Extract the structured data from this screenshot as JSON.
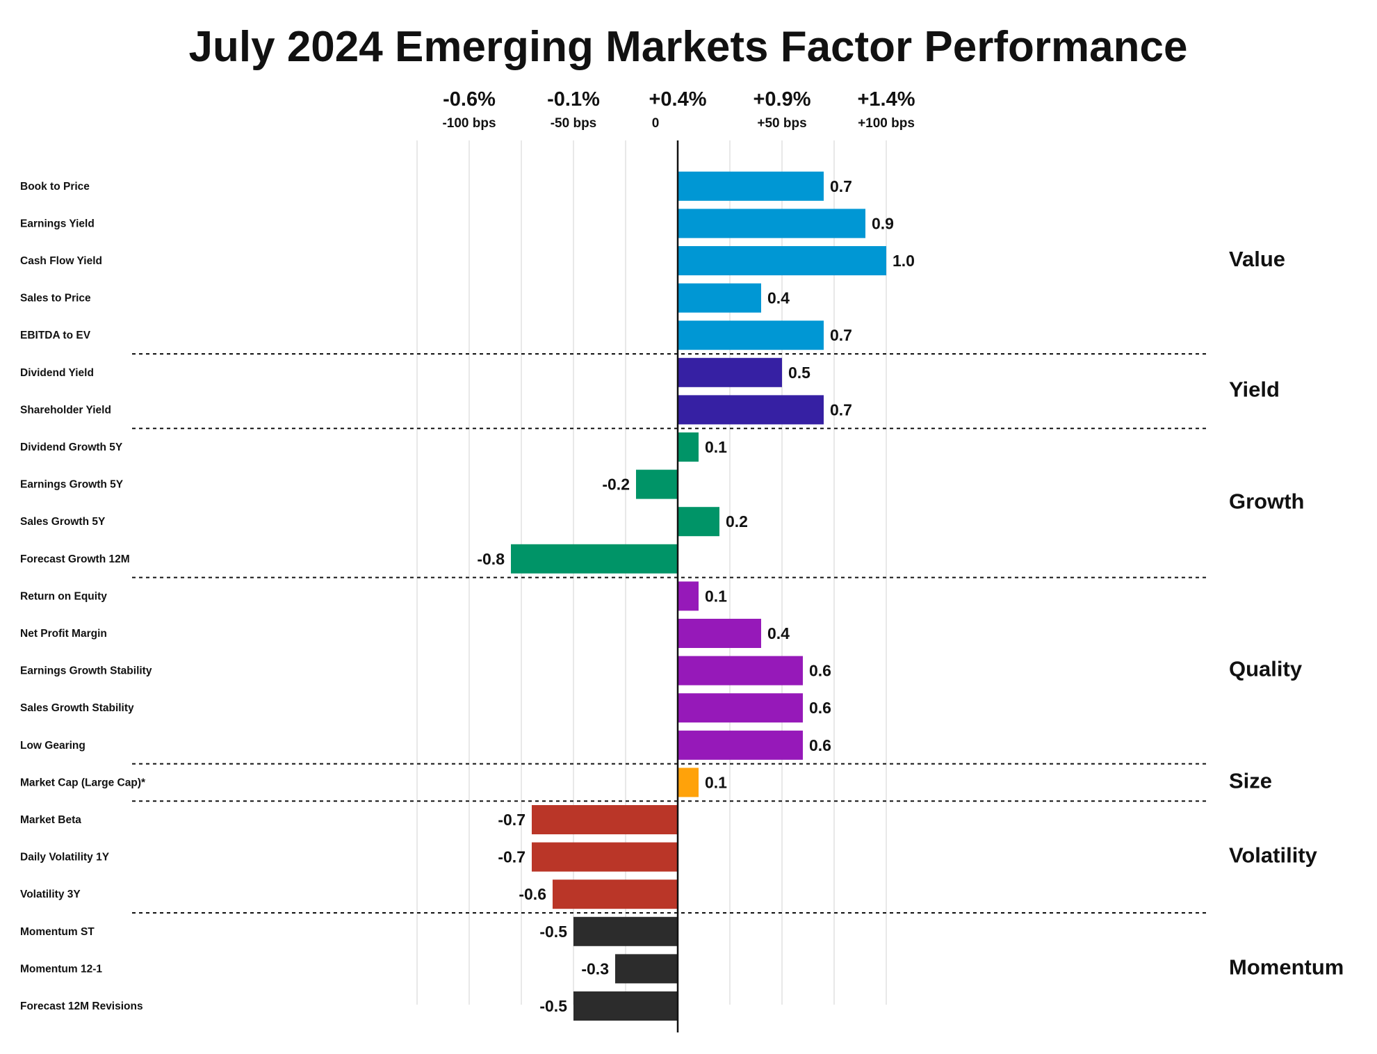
{
  "chart_data": {
    "type": "bar",
    "orientation": "horizontal",
    "title": "July 2024 Emerging Markets Factor Performance",
    "top_axis": {
      "ticks": [
        {
          "value": -100,
          "pct": "-0.6%",
          "bps": "-100 bps"
        },
        {
          "value": -50,
          "pct": "-0.1%",
          "bps": "-50 bps"
        },
        {
          "value": 0,
          "pct": "+0.4%",
          "bps": "0"
        },
        {
          "value": 50,
          "pct": "+0.9%",
          "bps": "+50 bps"
        },
        {
          "value": 100,
          "pct": "+1.4%",
          "bps": "+100 bps"
        }
      ],
      "gridlines": [
        -125,
        -100,
        -75,
        -50,
        -25,
        25,
        50,
        75,
        100
      ],
      "xlim": [
        -125,
        125
      ]
    },
    "grid": true,
    "groups": [
      {
        "name": "Value",
        "color": "#0097D4",
        "factors": [
          {
            "label": "Book to Price",
            "value": 0.7
          },
          {
            "label": "Earnings Yield",
            "value": 0.9
          },
          {
            "label": "Cash Flow Yield",
            "value": 1.0
          },
          {
            "label": "Sales to Price",
            "value": 0.4
          },
          {
            "label": "EBITDA to EV",
            "value": 0.7
          }
        ]
      },
      {
        "name": "Yield",
        "color": "#3620A3",
        "factors": [
          {
            "label": "Dividend Yield",
            "value": 0.5
          },
          {
            "label": "Shareholder Yield",
            "value": 0.7
          }
        ]
      },
      {
        "name": "Growth",
        "color": "#009467",
        "factors": [
          {
            "label": "Dividend Growth 5Y",
            "value": 0.1
          },
          {
            "label": "Earnings Growth 5Y",
            "value": -0.2
          },
          {
            "label": "Sales Growth 5Y",
            "value": 0.2
          },
          {
            "label": "Forecast Growth 12M",
            "value": -0.8
          }
        ]
      },
      {
        "name": "Quality",
        "color": "#9619B9",
        "factors": [
          {
            "label": "Return on Equity",
            "value": 0.1
          },
          {
            "label": "Net Profit Margin",
            "value": 0.4
          },
          {
            "label": "Earnings Growth Stability",
            "value": 0.6
          },
          {
            "label": "Sales Growth Stability",
            "value": 0.6
          },
          {
            "label": "Low Gearing",
            "value": 0.6
          }
        ]
      },
      {
        "name": "Size",
        "color": "#FFA20A",
        "factors": [
          {
            "label": "Market Cap (Large Cap)*",
            "value": 0.1
          }
        ]
      },
      {
        "name": "Volatility",
        "color": "#BA3628",
        "factors": [
          {
            "label": "Market Beta",
            "value": -0.7
          },
          {
            "label": "Daily Volatility 1Y",
            "value": -0.7
          },
          {
            "label": "Volatility 3Y",
            "value": -0.6
          }
        ]
      },
      {
        "name": "Momentum",
        "color": "#2C2C2C",
        "factors": [
          {
            "label": "Momentum ST",
            "value": -0.5
          },
          {
            "label": "Momentum 12-1",
            "value": -0.3
          },
          {
            "label": "Forecast 12M Revisions",
            "value": -0.5
          }
        ]
      }
    ]
  }
}
